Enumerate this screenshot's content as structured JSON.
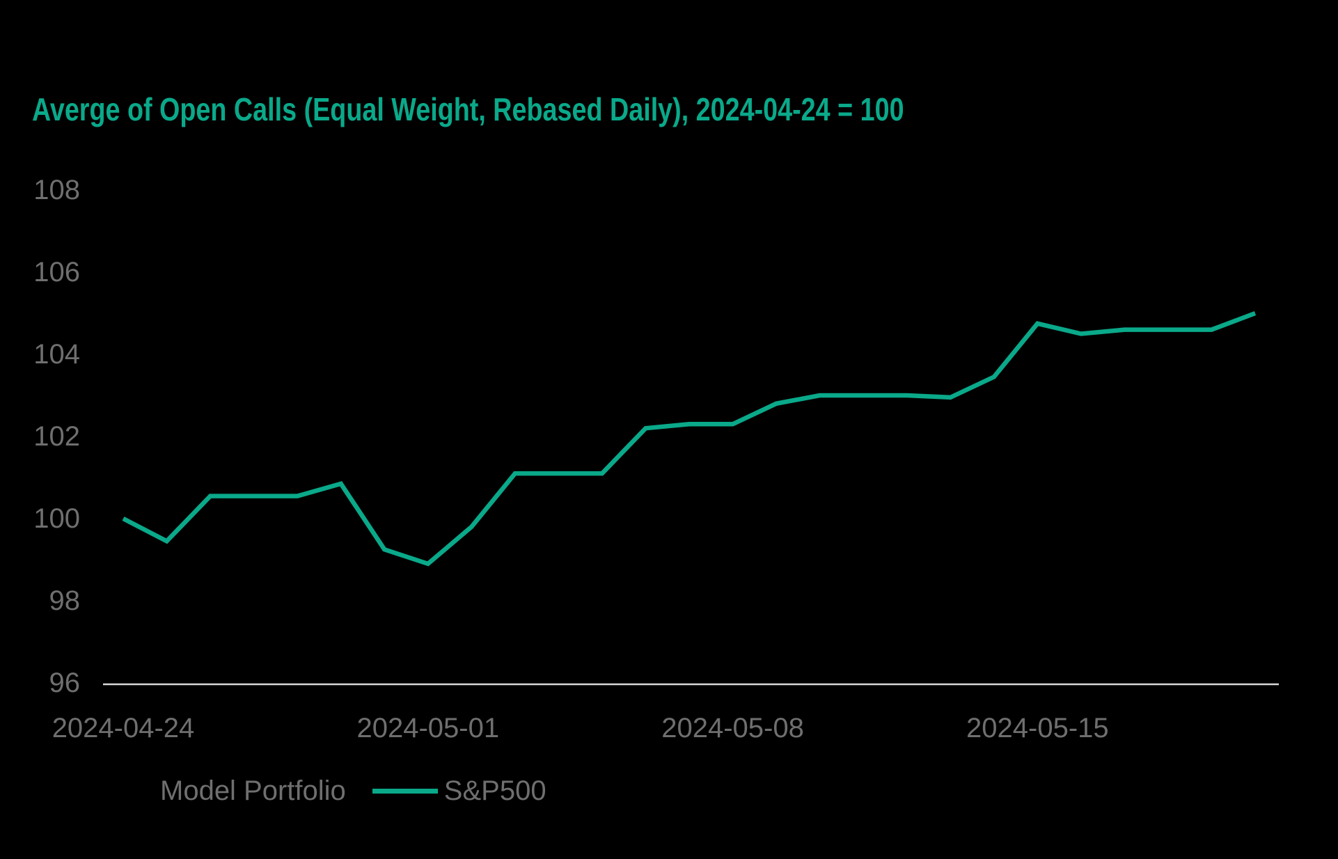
{
  "title": "Averge of Open Calls (Equal Weight, Rebased Daily), 2024-04-24 = 100",
  "colors": {
    "background": "#000000",
    "accent": "#0AA98A",
    "axis_line": "#D9D9D9",
    "label_gray": "#6F6F6F"
  },
  "legend": {
    "items": [
      {
        "label": "Model Portfolio",
        "swatch": "none"
      },
      {
        "label": "S&P500",
        "swatch": "#0AA98A"
      }
    ]
  },
  "chart_data": {
    "type": "line",
    "title": "Averge of Open Calls (Equal Weight, Rebased Daily), 2024-04-24 = 100",
    "x": [
      "2024-04-24",
      "2024-04-25",
      "2024-04-26",
      "2024-04-27",
      "2024-04-28",
      "2024-04-29",
      "2024-04-30",
      "2024-05-01",
      "2024-05-02",
      "2024-05-03",
      "2024-05-04",
      "2024-05-05",
      "2024-05-06",
      "2024-05-07",
      "2024-05-08",
      "2024-05-09",
      "2024-05-10",
      "2024-05-11",
      "2024-05-12",
      "2024-05-13",
      "2024-05-14",
      "2024-05-15",
      "2024-05-16",
      "2024-05-17",
      "2024-05-18",
      "2024-05-19",
      "2024-05-20"
    ],
    "series": [
      {
        "name": "S&P500",
        "color": "#0AA98A",
        "values": [
          100.0,
          99.45,
          100.55,
          100.55,
          100.55,
          100.85,
          99.25,
          98.9,
          99.8,
          101.1,
          101.1,
          101.1,
          102.2,
          102.3,
          102.3,
          102.8,
          103.0,
          103.0,
          103.0,
          102.95,
          103.45,
          104.75,
          104.5,
          104.6,
          104.6,
          104.6,
          105.0
        ]
      }
    ],
    "xlabel": "",
    "ylabel": "",
    "ylim": [
      96,
      108
    ],
    "yticks": [
      108,
      106,
      104,
      102,
      100,
      98,
      96
    ],
    "xticks": [
      "2024-04-24",
      "2024-05-01",
      "2024-05-08",
      "2024-05-15"
    ],
    "grid": false,
    "legend_position": "bottom-left",
    "baseline_note": "rebased, 2024-04-24 = 100"
  }
}
